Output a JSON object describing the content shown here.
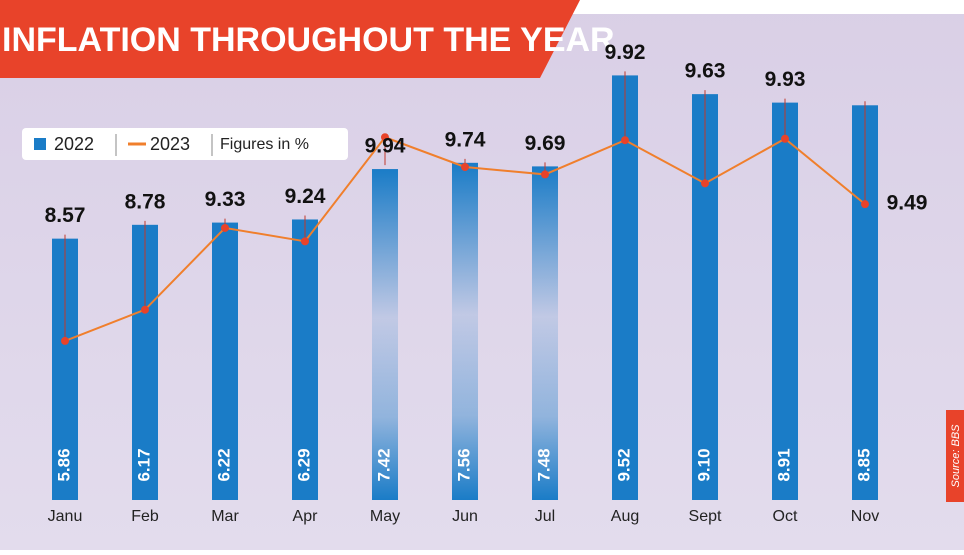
{
  "chart_data": {
    "type": "bar-line",
    "title": "INFLATION THROUGHOUT THE YEAR",
    "source": "Source: BBS",
    "note": "Figures in %",
    "categories": [
      "Janu",
      "Feb",
      "Mar",
      "Apr",
      "May",
      "Jun",
      "Jul",
      "Aug",
      "Sept",
      "Oct",
      "Nov"
    ],
    "series": [
      {
        "name": "2022",
        "type": "bar",
        "color": "#1a7cc7",
        "values": [
          5.86,
          6.17,
          6.22,
          6.29,
          7.42,
          7.56,
          7.48,
          9.52,
          9.1,
          8.91,
          8.85
        ],
        "value_labels": [
          "5.86",
          "6.17",
          "6.22",
          "6.29",
          "7.42",
          "7.56",
          "7.48",
          "9.52",
          "9.10",
          "8.91",
          "8.85"
        ]
      },
      {
        "name": "2023",
        "type": "line",
        "axis": "y2",
        "color": "#f07f2c",
        "values": [
          8.57,
          8.78,
          9.33,
          9.24,
          9.94,
          9.74,
          9.69,
          9.92,
          9.63,
          9.93,
          9.49
        ],
        "value_labels": [
          "8.57",
          "8.78",
          "9.33",
          "9.24",
          "9.94",
          "9.74",
          "9.69",
          "9.92",
          "9.63",
          "9.93",
          "9.49"
        ]
      }
    ],
    "ylim": [
      0,
      10
    ],
    "y2lim": [
      7.5,
      10.5
    ],
    "legend": "top-left",
    "grid": false
  }
}
